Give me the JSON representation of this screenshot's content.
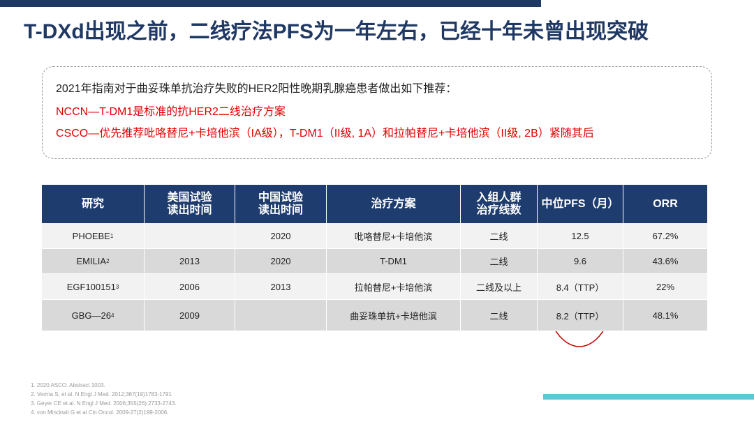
{
  "header": {
    "title": "T-DXd出现之前，二线疗法PFS为一年左右，已经十年未曾出现突破"
  },
  "note": {
    "lines": [
      "2021年指南对于曲妥珠单抗治疗失败的HER2阳性晚期乳腺癌患者做出如下推荐：",
      "NCCN—T-DM1是标准的抗HER2二线治疗方案",
      "CSCO—优先推荐吡咯替尼+卡培他滨（IA级），T-DM1（II级, 1A）和拉帕替尼+卡培他滨（II级, 2B）紧随其后"
    ]
  },
  "table": {
    "headers": [
      "研究",
      "美国试验读出时间",
      "中国试验读出时间",
      "治疗方案",
      "入组人群治疗线数",
      "中位PFS（月）",
      "ORR"
    ],
    "rows": [
      [
        {
          "text": "PHOEBE",
          "sup": "1"
        },
        null,
        "2020",
        "吡咯替尼+卡培他滨",
        "二线",
        "12.5",
        "67.2%"
      ],
      [
        {
          "text": "EMILIA",
          "sup": "2"
        },
        "2013",
        "2020",
        "T-DM1",
        "二线",
        "9.6",
        "43.6%"
      ],
      [
        {
          "text": "EGF100151",
          "sup": "3"
        },
        "2006",
        "2013",
        "拉帕替尼+卡培他滨",
        "二线及以上",
        "8.4（TTP）",
        "22%"
      ],
      [
        {
          "text": "GBG—26",
          "sup": "4"
        },
        "2009",
        null,
        "曲妥珠单抗+卡培他滨",
        "二线",
        "8.2（TTP）",
        "48.1%"
      ]
    ]
  },
  "footnotes": [
    "1. 2020 ASCO. Abstract 1003.",
    "2. Verma S, et al. N Engl J Med. 2012;367(19)1783-1791",
    "3. Geyer CE et al. N Engl J Med. 2006;355(26):2733-2743.",
    "4. von Minckwit G et al Cin Oncol. 2009-27(2)199-2006."
  ]
}
